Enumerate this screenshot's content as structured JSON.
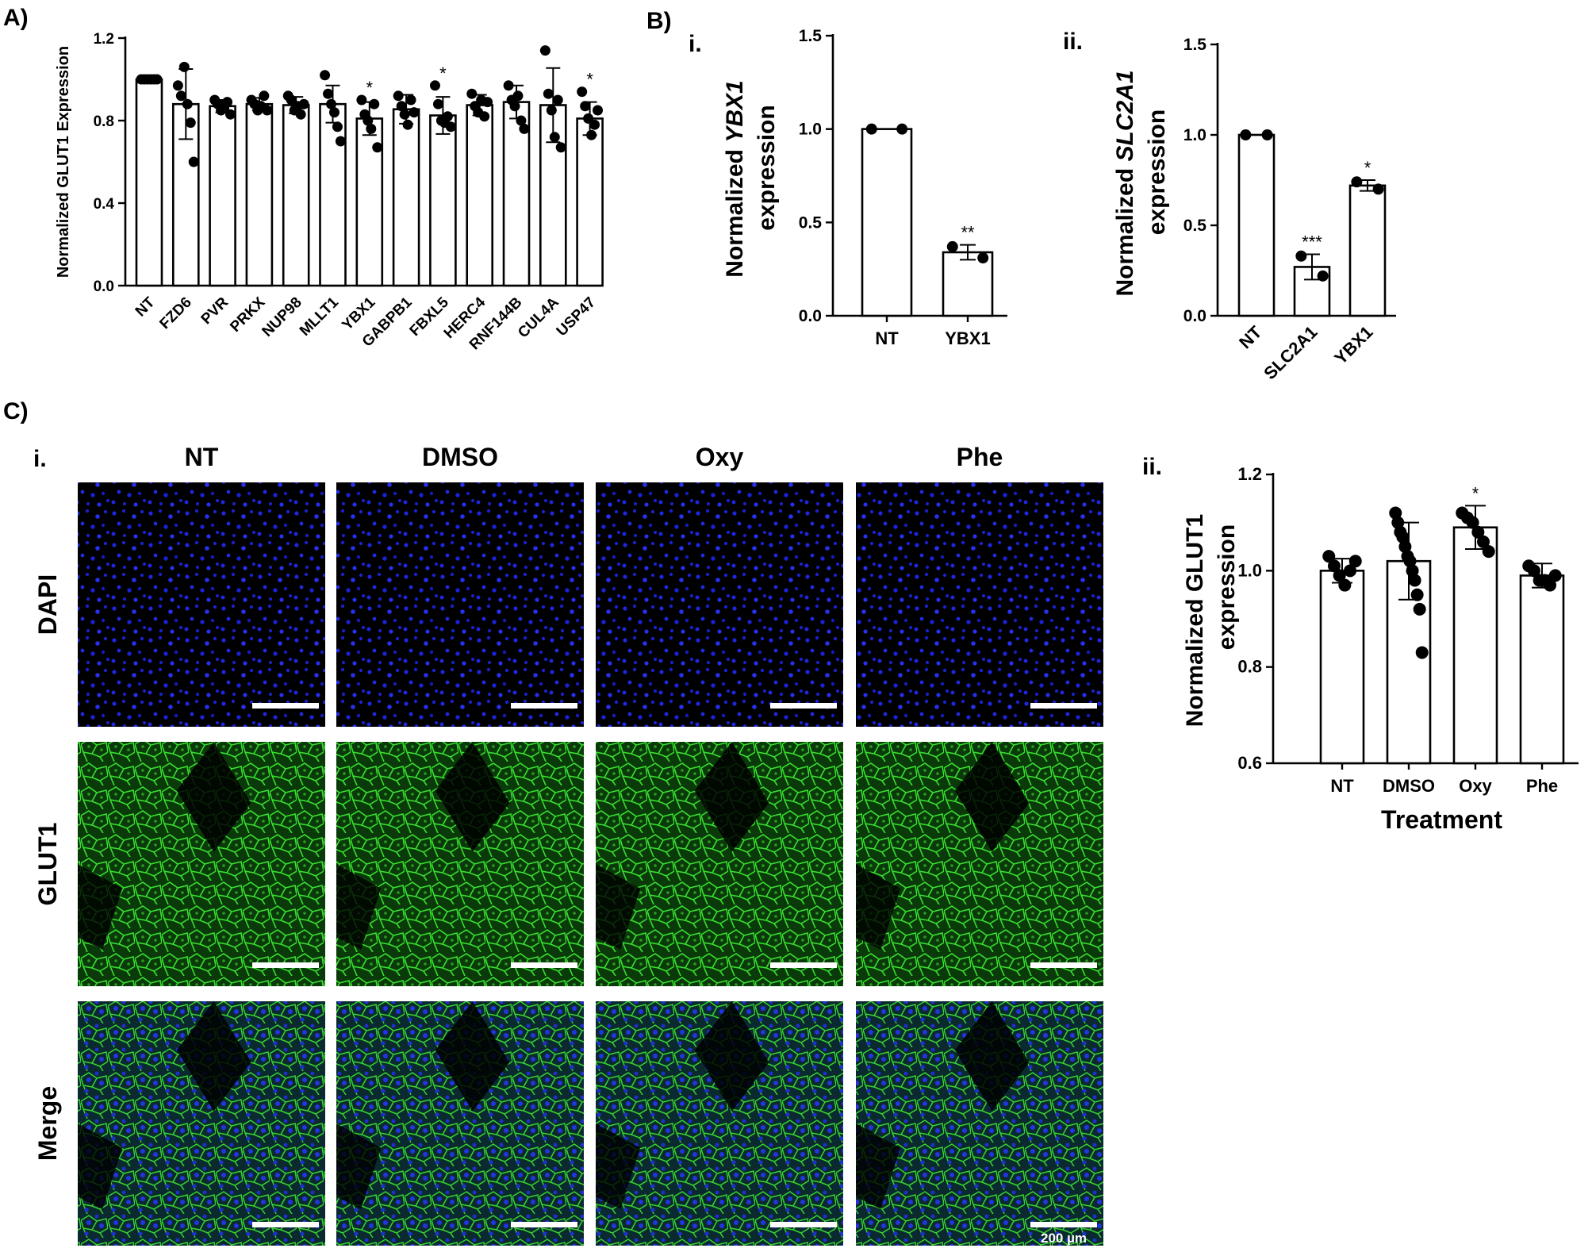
{
  "panels": {
    "A": "A)",
    "B": "B)",
    "B_i": "i.",
    "B_ii": "ii.",
    "C": "C)",
    "C_i": "i.",
    "C_ii": "ii."
  },
  "chart_data": [
    {
      "id": "A",
      "type": "bar",
      "ylabel": "Normalized GLUT1 Expression",
      "ylim": [
        0,
        1.2
      ],
      "yticks": [
        "0.0",
        "0.4",
        "0.8",
        "1.2"
      ],
      "categories": [
        "NT",
        "FZD6",
        "PVR",
        "PRKX",
        "NUP98",
        "MLLT1",
        "YBX1",
        "GABPB1",
        "FBXL5",
        "HERC4",
        "RNF144B",
        "CUL4A",
        "USP47"
      ],
      "values": [
        1.0,
        0.88,
        0.87,
        0.88,
        0.875,
        0.88,
        0.81,
        0.855,
        0.825,
        0.875,
        0.89,
        0.875,
        0.81
      ],
      "errors": [
        0.005,
        0.17,
        0.03,
        0.03,
        0.04,
        0.09,
        0.08,
        0.07,
        0.09,
        0.05,
        0.08,
        0.18,
        0.08
      ],
      "significance": [
        "",
        "",
        "",
        "",
        "",
        "",
        "*",
        "",
        "*",
        "",
        "",
        "",
        "*"
      ],
      "points": [
        [
          1,
          1,
          1,
          1,
          1,
          1
        ],
        [
          0.97,
          0.92,
          1.06,
          0.88,
          0.79,
          0.6
        ],
        [
          0.9,
          0.88,
          0.85,
          0.86,
          0.89,
          0.83
        ],
        [
          0.9,
          0.88,
          0.85,
          0.87,
          0.92,
          0.85
        ],
        [
          0.92,
          0.9,
          0.85,
          0.87,
          0.83,
          0.88
        ],
        [
          1.02,
          0.93,
          0.88,
          0.84,
          0.77,
          0.7
        ],
        [
          0.9,
          0.83,
          0.8,
          0.76,
          0.88,
          0.67
        ],
        [
          0.92,
          0.87,
          0.83,
          0.78,
          0.9,
          0.84
        ],
        [
          0.97,
          0.88,
          0.8,
          0.79,
          0.82,
          0.77
        ],
        [
          0.93,
          0.87,
          0.84,
          0.9,
          0.82,
          0.89
        ],
        [
          0.97,
          0.9,
          0.87,
          0.92,
          0.8,
          0.76
        ],
        [
          1.14,
          0.93,
          0.85,
          0.72,
          0.9,
          0.67
        ],
        [
          0.94,
          0.87,
          0.81,
          0.73,
          0.78,
          0.85
        ]
      ]
    },
    {
      "id": "Bi",
      "type": "bar",
      "ylabel_prefix": "Normalized ",
      "ylabel_italic": "YBX1",
      "ylabel_line2": "expression",
      "ylim": [
        0,
        1.5
      ],
      "yticks": [
        "0.0",
        "0.5",
        "1.0",
        "1.5"
      ],
      "categories": [
        "NT",
        "YBX1"
      ],
      "values": [
        1.0,
        0.34
      ],
      "errors": [
        0.005,
        0.04
      ],
      "significance": [
        "",
        "**"
      ],
      "points": [
        [
          1,
          1
        ],
        [
          0.37,
          0.31
        ]
      ]
    },
    {
      "id": "Bii",
      "type": "bar",
      "ylabel_prefix": "Normalized ",
      "ylabel_italic": "SLC2A1",
      "ylabel_line2": "expression",
      "ylim": [
        0,
        1.5
      ],
      "yticks": [
        "0.0",
        "0.5",
        "1.0",
        "1.5"
      ],
      "categories": [
        "NT",
        "SLC2A1",
        "YBX1"
      ],
      "values": [
        1.0,
        0.27,
        0.72
      ],
      "errors": [
        0.005,
        0.07,
        0.03
      ],
      "significance": [
        "",
        "***",
        "*"
      ],
      "points": [
        [
          1,
          1
        ],
        [
          0.33,
          0.22
        ],
        [
          0.74,
          0.7
        ]
      ]
    },
    {
      "id": "Cii",
      "type": "bar",
      "ylabel": "Normalized GLUT1",
      "ylabel_line2": "expression",
      "xlabel": "Treatment",
      "ylim": [
        0.6,
        1.2
      ],
      "yticks": [
        "0.6",
        "0.8",
        "1.0",
        "1.2"
      ],
      "categories": [
        "NT",
        "DMSO",
        "Oxy",
        "Phe"
      ],
      "values": [
        1.0,
        1.02,
        1.09,
        0.99
      ],
      "errors": [
        0.025,
        0.08,
        0.045,
        0.025
      ],
      "significance": [
        "",
        "",
        "*",
        ""
      ],
      "points": [
        [
          1.03,
          1.01,
          0.99,
          0.97,
          1.0,
          1.02
        ],
        [
          1.12,
          1.1,
          1.08,
          1.07,
          1.05,
          1.03,
          1.02,
          1.0,
          0.98,
          0.95,
          0.92,
          0.83
        ],
        [
          1.12,
          1.11,
          1.1,
          1.08,
          1.06,
          1.04
        ],
        [
          1.01,
          1.0,
          0.98,
          0.98,
          0.97,
          0.99
        ]
      ]
    }
  ],
  "microscopy": {
    "columns": [
      "NT",
      "DMSO",
      "Oxy",
      "Phe"
    ],
    "rows": [
      "DAPI",
      "GLUT1",
      "Merge"
    ],
    "scalebar_label": "200 µm",
    "colors": {
      "DAPI": "#1a22d8",
      "GLUT1": "#2fd12a",
      "background": "#000000"
    }
  }
}
